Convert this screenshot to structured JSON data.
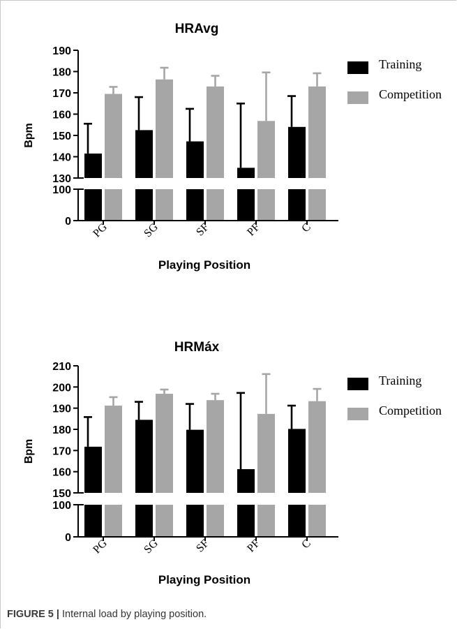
{
  "figure": {
    "caption_label": "FIGURE 5 |",
    "caption_text": "Internal load by playing position."
  },
  "colors": {
    "training": "#000000",
    "competition": "#a6a6a6",
    "axis": "#000000",
    "text": "#000000"
  },
  "chart_data": [
    {
      "type": "bar",
      "title": "HRAvg",
      "xlabel": "Playing Position",
      "ylabel": "Bpm",
      "categories": [
        "PG",
        "SG",
        "SF",
        "PF",
        "C"
      ],
      "series": [
        {
          "name": "Training",
          "values": [
            141.5,
            152.5,
            147.2,
            134.8,
            154.0
          ],
          "error": [
            14,
            15.5,
            15.3,
            30.2,
            14.5
          ]
        },
        {
          "name": "Competition",
          "values": [
            169.5,
            176.3,
            173.0,
            156.8,
            173.0
          ],
          "error": [
            3.3,
            5.5,
            5.0,
            22.8,
            6.2
          ]
        }
      ],
      "ylim_upper": [
        130,
        190
      ],
      "ylim_lower": [
        0,
        100
      ],
      "yticks_upper": [
        130,
        140,
        150,
        160,
        170,
        180,
        190
      ],
      "yticks_lower": [
        0,
        100
      ],
      "axis_break": true,
      "legend": "right"
    },
    {
      "type": "bar",
      "title": "HRMáx",
      "xlabel": "Playing Position",
      "ylabel": "Bpm",
      "categories": [
        "PG",
        "SG",
        "SF",
        "PF",
        "C"
      ],
      "series": [
        {
          "name": "Training",
          "values": [
            171.8,
            184.5,
            179.8,
            161.2,
            180.2
          ],
          "error": [
            14,
            8.5,
            12.2,
            36.0,
            11.0
          ]
        },
        {
          "name": "Competition",
          "values": [
            191.2,
            196.8,
            193.8,
            187.3,
            193.3
          ],
          "error": [
            4.0,
            2.0,
            3.0,
            18.8,
            5.8
          ]
        }
      ],
      "ylim_upper": [
        150,
        210
      ],
      "ylim_lower": [
        0,
        100
      ],
      "yticks_upper": [
        150,
        160,
        170,
        180,
        190,
        200,
        210
      ],
      "yticks_lower": [
        0,
        100
      ],
      "axis_break": true,
      "legend": "right"
    }
  ]
}
